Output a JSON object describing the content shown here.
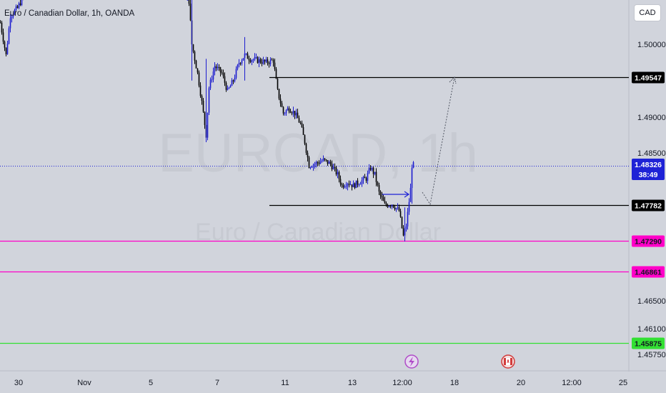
{
  "header": {
    "symbol_title": "Euro / Canadian Dollar, 1h, OANDA",
    "currency_button": "CAD"
  },
  "watermark": {
    "ticker": "EURCAD, 1h",
    "description": "Euro / Canadian Dollar"
  },
  "colors": {
    "background": "#d1d4dc",
    "candle_up": "#1c1ccf",
    "candle_down": "#000000",
    "magenta_level": "#ff00c8",
    "green_level": "#33e033",
    "current_price": "#1e22d6",
    "dark_tag": "#000000"
  },
  "chart_data": {
    "type": "candlestick",
    "symbol": "EURCAD",
    "timeframe": "1h",
    "broker": "OANDA",
    "quote_currency": "CAD",
    "x_tick_labels": [
      "30",
      "Nov",
      "5",
      "7",
      "11",
      "13",
      "12:00",
      "18",
      "20",
      "12:00",
      "25"
    ],
    "y_tick_labels": [
      "1.50000",
      "1.49000",
      "1.48500",
      "1.46500",
      "1.46100",
      "1.45750"
    ],
    "horizontal_levels": [
      {
        "price": 1.49547,
        "label": "1.49547",
        "color": "#000000"
      },
      {
        "price": 1.47782,
        "label": "1.47782",
        "color": "#000000"
      },
      {
        "price": 1.4729,
        "label": "1.47290",
        "color": "#ff00c8"
      },
      {
        "price": 1.46861,
        "label": "1.46861",
        "color": "#ff00c8"
      },
      {
        "price": 1.45875,
        "label": "1.45875",
        "color": "#33e033"
      }
    ],
    "current_price": {
      "price": 1.48326,
      "label": "1.48326",
      "countdown": "38:49"
    },
    "projection": {
      "note": "dotted projection path from 1.4778 up toward 1.4955"
    }
  }
}
